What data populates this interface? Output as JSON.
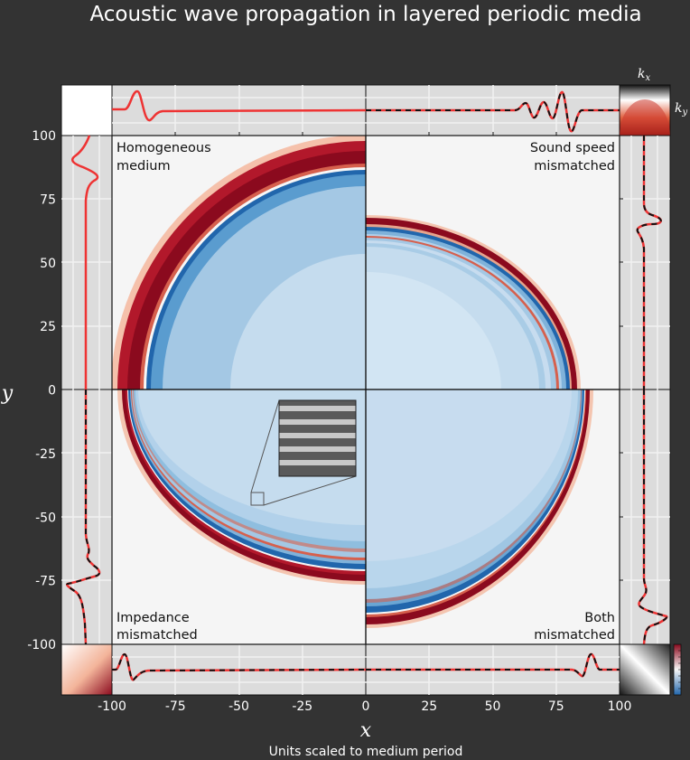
{
  "title": "Acoustic wave propagation in layered periodic media",
  "caption": "Units scaled to medium period",
  "colors": {
    "background": "#333333",
    "profile_line": "#ee3333",
    "reference_dash": "#111111",
    "ring_dark_red": "#8b0a1e",
    "interior_blue": "#2a6db0",
    "panel_bg": "#f5f5f5",
    "profile_bg": "#dcdcdc"
  },
  "chart_data": {
    "type": "heatmap",
    "title": "Acoustic wave propagation in layered periodic media",
    "xlabel": "x",
    "ylabel": "y",
    "xlim": [
      -100,
      100
    ],
    "ylim": [
      -100,
      100
    ],
    "x_ticks": [
      "-100",
      "-75",
      "-50",
      "-25",
      "0",
      "25",
      "50",
      "75",
      "100"
    ],
    "y_ticks": [
      "100",
      "75",
      "50",
      "25",
      "0",
      "-25",
      "-50",
      "-75",
      "-100"
    ],
    "grid": true,
    "colormap": "red-white-blue (diverging)",
    "quadrants": [
      {
        "position": "top-left",
        "label": "Homogeneous\nmedium",
        "front_x_radius": 87,
        "front_y_radius": 87
      },
      {
        "position": "top-right",
        "label": "Sound speed\nmismatched",
        "front_x_radius": 80,
        "front_y_radius": 65
      },
      {
        "position": "bottom-left",
        "label": "Impedance\nmismatched",
        "front_x_radius": 94,
        "front_y_radius": 74
      },
      {
        "position": "bottom-right",
        "label": "Both\nmismatched",
        "front_x_radius": 86,
        "front_y_radius": 89
      }
    ],
    "profiles": {
      "top_left_peak_x": -90,
      "top_right_peak_x": 78,
      "left_top_peak_y": 85,
      "left_bottom_peak_y": -75,
      "right_top_peak_y": 65,
      "right_bottom_peak_y": -88,
      "bottom_left_peak_x": -95,
      "bottom_right_peak_x": 87
    },
    "corner_labels": {
      "kx": "k",
      "kx_sub": "x",
      "ky": "k",
      "ky_sub": "y"
    },
    "inset": "layered medium stripe pattern"
  }
}
